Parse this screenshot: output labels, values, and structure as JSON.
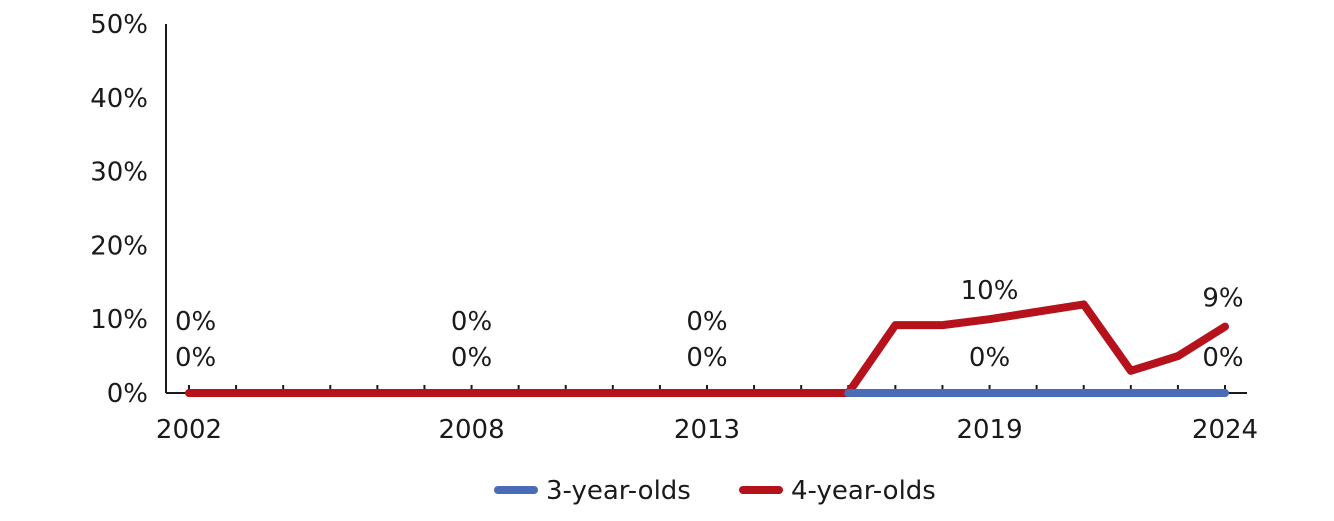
{
  "chart_data": {
    "type": "line",
    "x": [
      2002,
      2003,
      2004,
      2005,
      2006,
      2007,
      2008,
      2009,
      2010,
      2011,
      2012,
      2013,
      2014,
      2015,
      2016,
      2017,
      2018,
      2019,
      2020,
      2021,
      2022,
      2023,
      2024
    ],
    "x_tick_labels": [
      "2002",
      "2008",
      "2013",
      "2019",
      "2024"
    ],
    "y_tick_labels": [
      "0%",
      "10%",
      "20%",
      "30%",
      "40%",
      "50%"
    ],
    "ylim": [
      0,
      50
    ],
    "series": [
      {
        "name": "3-year-olds",
        "color": "#4a6bb5",
        "x": [
          2016,
          2017,
          2018,
          2019,
          2020,
          2021,
          2022,
          2023,
          2024
        ],
        "values": [
          0,
          0,
          0,
          0,
          0,
          0,
          0,
          0,
          0
        ]
      },
      {
        "name": "4-year-olds",
        "color": "#b5121b",
        "x": [
          2002,
          2003,
          2004,
          2005,
          2006,
          2007,
          2008,
          2009,
          2010,
          2011,
          2012,
          2013,
          2014,
          2015,
          2016,
          2017,
          2018,
          2019,
          2020,
          2021,
          2022,
          2023,
          2024
        ],
        "values": [
          0,
          0,
          0,
          0,
          0,
          0,
          0,
          0,
          0,
          0,
          0,
          0,
          0,
          0,
          0,
          9.2,
          9.2,
          10,
          11,
          12,
          3,
          5,
          9
        ]
      }
    ],
    "data_labels": [
      {
        "series": "4-year-olds",
        "x": 2002,
        "text": "0%"
      },
      {
        "series": "3-year-olds",
        "x": 2002,
        "text": "0%"
      },
      {
        "series": "4-year-olds",
        "x": 2008,
        "text": "0%"
      },
      {
        "series": "3-year-olds",
        "x": 2008,
        "text": "0%"
      },
      {
        "series": "4-year-olds",
        "x": 2013,
        "text": "0%"
      },
      {
        "series": "3-year-olds",
        "x": 2013,
        "text": "0%"
      },
      {
        "series": "4-year-olds",
        "x": 2019,
        "text": "10%"
      },
      {
        "series": "3-year-olds",
        "x": 2019,
        "text": "0%"
      },
      {
        "series": "4-year-olds",
        "x": 2024,
        "text": "9%"
      },
      {
        "series": "3-year-olds",
        "x": 2024,
        "text": "0%"
      }
    ],
    "grid": false,
    "legend": "bottom"
  }
}
